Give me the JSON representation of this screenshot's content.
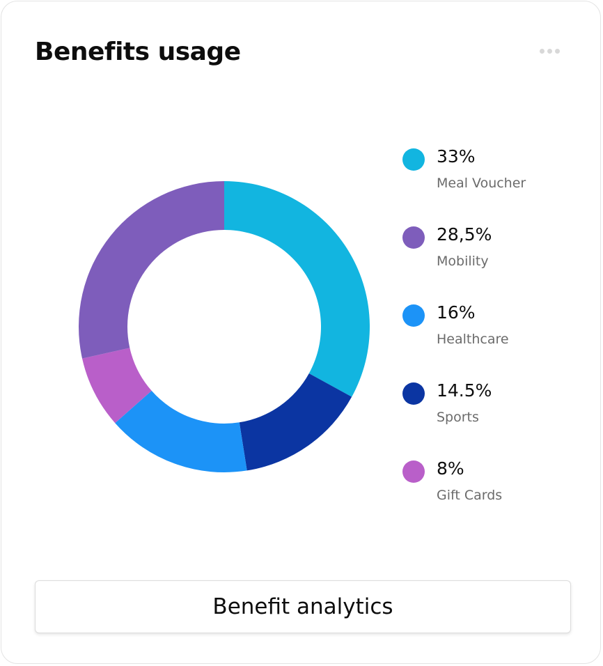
{
  "card": {
    "title": "Benefits usage",
    "menu_icon": "more-horizontal-icon",
    "button_label": "Benefit analytics"
  },
  "colors": {
    "text_primary": "#0d0d0d",
    "text_secondary": "#6b6b6b",
    "card_border": "#e3e3e3",
    "menu_dots": "#d8d8d8"
  },
  "chart_data": {
    "type": "pie",
    "variant": "donut",
    "legend_position": "right",
    "slices": [
      {
        "label": "Meal Voucher",
        "value": 33,
        "display": "33%",
        "color": "#12b5e0"
      },
      {
        "label": "Sports",
        "value": 14.5,
        "display": "14.5%",
        "color": "#0b35a2"
      },
      {
        "label": "Healthcare",
        "value": 16,
        "display": "16%",
        "color": "#1c93f7"
      },
      {
        "label": "Gift Cards",
        "value": 8,
        "display": "8%",
        "color": "#b95fc9"
      },
      {
        "label": "Mobility",
        "value": 28.5,
        "display": "28,5%",
        "color": "#7e5dbb"
      }
    ],
    "legend": [
      {
        "label": "Meal Voucher",
        "display": "33%",
        "color": "#12b5e0"
      },
      {
        "label": "Mobility",
        "display": "28,5%",
        "color": "#7e5dbb"
      },
      {
        "label": "Healthcare",
        "display": "16%",
        "color": "#1c93f7"
      },
      {
        "label": "Sports",
        "display": "14.5%",
        "color": "#0b35a2"
      },
      {
        "label": "Gift Cards",
        "display": "8%",
        "color": "#b95fc9"
      }
    ]
  }
}
